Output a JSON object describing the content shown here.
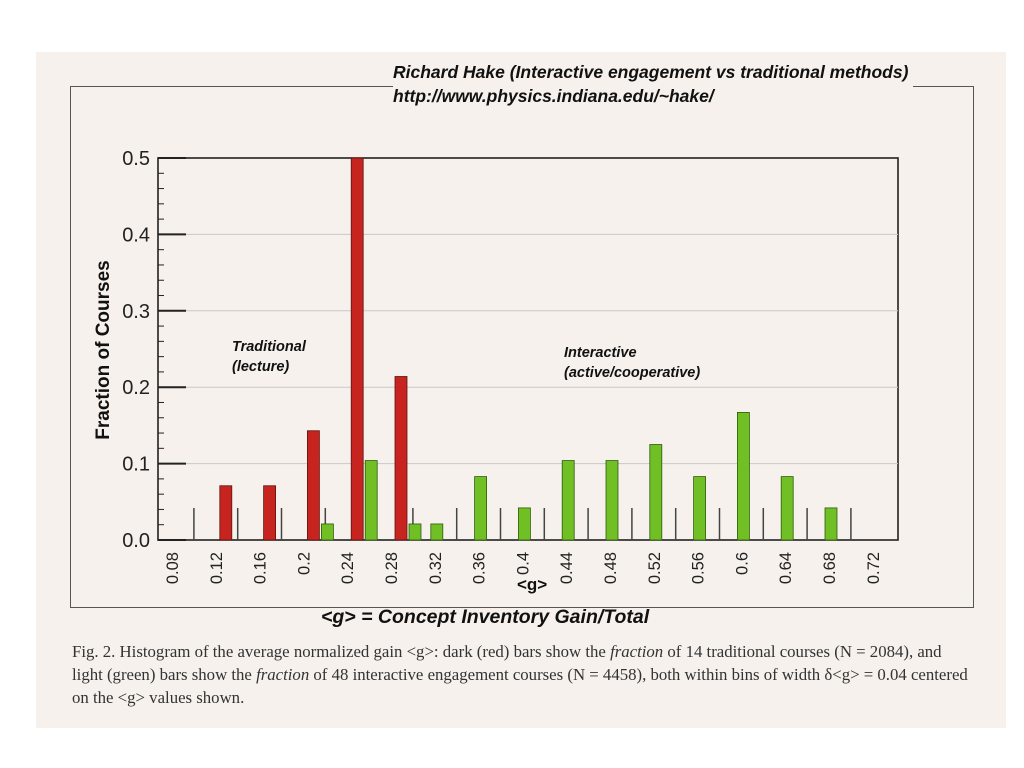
{
  "header_text": "Richard Hake (Interactive engagement vs traditional methods) http://www.physics.indiana.edu/~hake/",
  "subtitle": "<g> = Concept Inventory Gain/Total",
  "annotations": {
    "traditional": "Traditional (lecture)",
    "interactive": "Interactive (active/cooperative)"
  },
  "caption": {
    "p1": "Fig. 2.  Histogram of the average normalized gain <g>:  dark (red) bars show the ",
    "p2": "fraction",
    "p3": " of 14 traditional courses (N = 2084), and light (green) bars show the ",
    "p4": "fraction",
    "p5": " of 48 interactive engagement courses (N = 4458), both within bins of width δ<g> = 0.04 centered on the <g> values shown."
  },
  "colors": {
    "traditional": "#c7241f",
    "interactive": "#6fbf25",
    "axis": "#222222",
    "grid": "#c9c9c9"
  },
  "chart_data": {
    "type": "bar",
    "xlabel": "<g>",
    "ylabel": "Fraction of Courses",
    "ylim": [
      0,
      0.5
    ],
    "yticks": [
      "0.0",
      "0.1",
      "0.2",
      "0.3",
      "0.4",
      "0.5"
    ],
    "categories": [
      "0.08",
      "0.12",
      "0.16",
      "0.2",
      "0.24",
      "0.28",
      "0.32",
      "0.36",
      "0.4",
      "0.44",
      "0.48",
      "0.52",
      "0.56",
      "0.6",
      "0.64",
      "0.68",
      "0.72"
    ],
    "grid": "horizontal",
    "series": [
      {
        "name": "Traditional (lecture)",
        "values": [
          0,
          0.071,
          0.071,
          0.143,
          0.5,
          0.214,
          0,
          0,
          0,
          0,
          0,
          0,
          0,
          0,
          0,
          0,
          0
        ]
      },
      {
        "name": "Interactive (active/cooperative)",
        "values": [
          0,
          0,
          0,
          0.021,
          0.104,
          0.021,
          0.021,
          0.083,
          0.042,
          0.104,
          0.104,
          0.125,
          0.083,
          0.167,
          0.083,
          0.042,
          0
        ]
      }
    ]
  }
}
